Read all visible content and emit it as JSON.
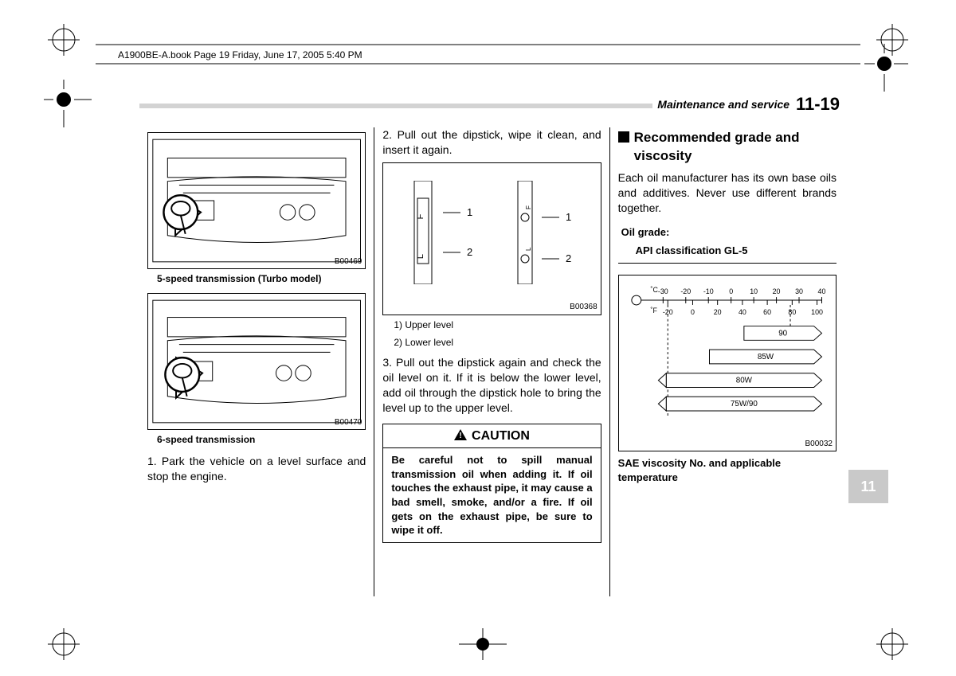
{
  "meta": {
    "book_header": "A1900BE-A.book  Page 19  Friday, June 17, 2005  5:40 PM",
    "section_title": "Maintenance and service",
    "page_number": "11-19",
    "side_tab": "11"
  },
  "col1": {
    "fig1_code": "B00469",
    "fig1_caption": "5-speed transmission (Turbo model)",
    "fig2_code": "B00470",
    "fig2_caption": "6-speed transmission",
    "step1": "1.  Park the vehicle on a level surface and stop the engine."
  },
  "col2": {
    "step2": "2.  Pull out the dipstick, wipe it clean, and insert it again.",
    "dipstick_fig_code": "B00368",
    "dipstick_labels": {
      "one": "1",
      "two": "2",
      "F": "F",
      "L": "L"
    },
    "legend_1": "1)  Upper level",
    "legend_2": "2)  Lower level",
    "step3": "3.  Pull out the dipstick again and check the oil level on it. If it is below the lower level, add oil through the dipstick hole to bring the level up to the upper level.",
    "caution_title": "CAUTION",
    "caution_body": "Be careful not to spill manual transmission oil when adding it. If oil touches the exhaust pipe, it may cause a bad smell, smoke, and/or a fire. If oil gets on the exhaust pipe, be sure to wipe it off."
  },
  "col3": {
    "heading": "Recommended grade and viscosity",
    "intro": "Each oil manufacturer has its own base oils and additives. Never use different brands together.",
    "oil_grade_label": "Oil grade:",
    "oil_grade_value": "API classification GL-5",
    "chart_code": "B00032",
    "chart_caption": "SAE viscosity No. and applicable temperature",
    "c_labels": [
      "-30",
      "-20",
      "-10",
      "0",
      "10",
      "20",
      "30",
      "40"
    ],
    "f_labels": [
      "-20",
      "0",
      "20",
      "40",
      "60",
      "80",
      "100"
    ],
    "c_unit": "˚C",
    "f_unit": "˚F",
    "bars": [
      {
        "label": "90",
        "left_pct": 55,
        "arrow_left": false
      },
      {
        "label": "85W",
        "left_pct": 35,
        "arrow_left": false
      },
      {
        "label": "80W",
        "left_pct": 10,
        "arrow_left": true
      },
      {
        "label": "75W/90",
        "left_pct": 10,
        "arrow_left": true
      }
    ]
  },
  "style": {
    "bg": "#ffffff",
    "rule": "#d3d3d3",
    "tab_bg": "#c9c9c9"
  }
}
